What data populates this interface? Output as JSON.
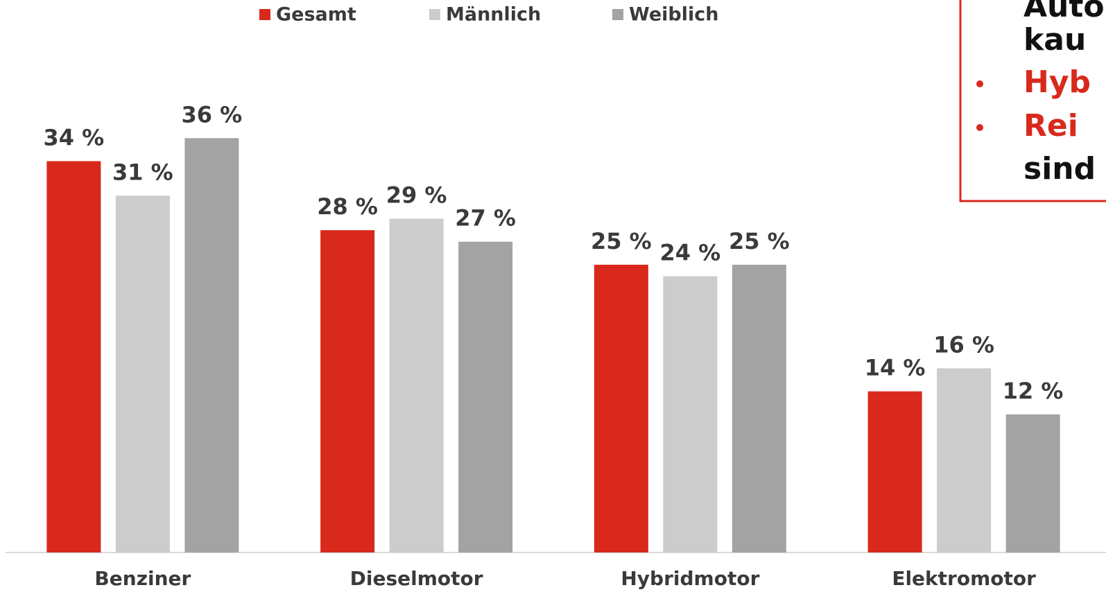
{
  "chart_data": {
    "type": "bar",
    "categories": [
      "Benziner",
      "Dieselmotor",
      "Hybridmotor",
      "Elektromotor"
    ],
    "series": [
      {
        "name": "Gesamt",
        "color": "#d9291c",
        "values": [
          34,
          28,
          25,
          14
        ],
        "value_labels": [
          "34 %",
          "28 %",
          "25 %",
          "14 %"
        ]
      },
      {
        "name": "Männlich",
        "color": "#cccccc",
        "values": [
          31,
          29,
          24,
          16
        ],
        "value_labels": [
          "31 %",
          "29 %",
          "24 %",
          "16 %"
        ]
      },
      {
        "name": "Weiblich",
        "color": "#a3a3a3",
        "values": [
          36,
          27,
          25,
          12
        ],
        "value_labels": [
          "36 %",
          "27 %",
          "25 %",
          "12 %"
        ]
      }
    ],
    "ylim": [
      0,
      48
    ],
    "legend": "top",
    "annotations": [
      {
        "text": "Auto",
        "color": "#111111"
      },
      {
        "text": "kau",
        "color": "#111111"
      },
      {
        "text": "Hyb",
        "color": "#d9291c"
      },
      {
        "text": "Rei",
        "color": "#d9291c"
      },
      {
        "text": "sind",
        "color": "#111111"
      }
    ]
  }
}
